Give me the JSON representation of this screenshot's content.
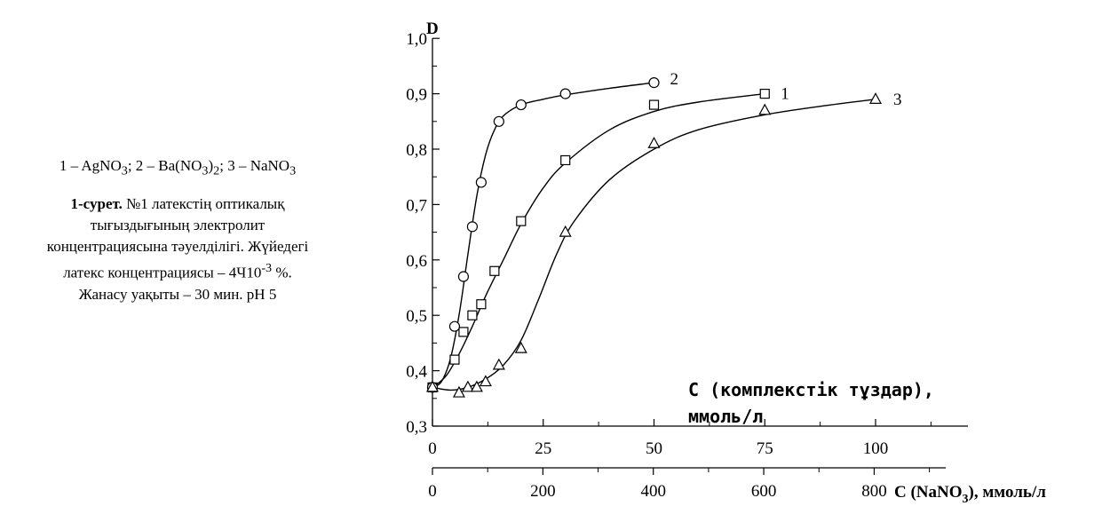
{
  "caption": {
    "legend_parts": [
      {
        "text": "1 – AgNO"
      },
      {
        "text": "3",
        "sub": true
      },
      {
        "text": "; 2 – Ba(NO"
      },
      {
        "text": "3",
        "sub": true
      },
      {
        "text": ")"
      },
      {
        "text": "2",
        "sub": true
      },
      {
        "text": "; 3 – NaNO"
      },
      {
        "text": "3",
        "sub": true
      }
    ],
    "figure_label": "1-сурет.",
    "figure_text_1": " №1 латекстің оптикалық тығыздығының электролит концентрациясына тәуелділігі. Жүйедегі латекс концентрациясы – 4Ч10",
    "figure_exp": "-3",
    "figure_text_2": " %. Жанасу уақыты – 30 мин. pH 5"
  },
  "chart_data": {
    "type": "scatter",
    "ylabel": "D",
    "ylim": [
      0.3,
      1.0
    ],
    "yticks": [
      0.3,
      0.4,
      0.5,
      0.6,
      0.7,
      0.8,
      0.9,
      1.0
    ],
    "ytick_labels": [
      "0,3",
      "0,4",
      "0,5",
      "0,6",
      "0,7",
      "0,8",
      "0,9",
      "1,0"
    ],
    "xaxis_top": {
      "label_line1": "C  (комплекстік тұздар),",
      "label_line2": "ммоль/л",
      "xlim": [
        0,
        120
      ],
      "ticks": [
        0,
        25,
        50,
        75,
        100
      ],
      "tick_labels": [
        "0",
        "25",
        "50",
        "75",
        "100"
      ]
    },
    "xaxis_bottom": {
      "label_main": "C (NaNO",
      "label_sub": "3",
      "label_end": "), ммоль/л",
      "xlim": [
        0,
        960
      ],
      "ticks": [
        0,
        200,
        400,
        600,
        800
      ],
      "tick_labels": [
        "0",
        "200",
        "400",
        "600",
        "800"
      ]
    },
    "series": [
      {
        "name": "1",
        "marker": "square",
        "axis": "top",
        "x": [
          0,
          5,
          7,
          9,
          11,
          14,
          20,
          30,
          50,
          75
        ],
        "y": [
          0.37,
          0.42,
          0.47,
          0.5,
          0.52,
          0.58,
          0.67,
          0.78,
          0.88,
          0.9
        ],
        "curve_x": [
          0,
          3,
          6,
          9,
          12,
          16,
          20,
          25,
          30,
          40,
          50,
          60,
          75
        ],
        "curve_y": [
          0.37,
          0.39,
          0.43,
          0.48,
          0.535,
          0.6,
          0.665,
          0.73,
          0.775,
          0.835,
          0.868,
          0.885,
          0.9
        ]
      },
      {
        "name": "2",
        "marker": "circle",
        "axis": "top",
        "x": [
          0,
          5,
          7,
          9,
          11,
          15,
          20,
          30,
          50
        ],
        "y": [
          0.37,
          0.48,
          0.57,
          0.66,
          0.74,
          0.85,
          0.88,
          0.9,
          0.92
        ],
        "curve_x": [
          0,
          2,
          4,
          6,
          8,
          10,
          12,
          14,
          16,
          20,
          25,
          30,
          40,
          50
        ],
        "curve_y": [
          0.37,
          0.38,
          0.42,
          0.5,
          0.61,
          0.715,
          0.79,
          0.835,
          0.86,
          0.88,
          0.89,
          0.898,
          0.91,
          0.92
        ]
      },
      {
        "name": "3",
        "marker": "triangle",
        "axis": "top",
        "x": [
          0,
          6,
          8,
          10,
          12,
          15,
          20,
          30,
          50,
          75,
          100
        ],
        "y": [
          0.37,
          0.36,
          0.37,
          0.37,
          0.38,
          0.41,
          0.44,
          0.65,
          0.81,
          0.87,
          0.89
        ],
        "curve_x": [
          0,
          4,
          8,
          12,
          16,
          20,
          24,
          28,
          32,
          40,
          50,
          60,
          75,
          90,
          100
        ],
        "curve_y": [
          0.37,
          0.365,
          0.37,
          0.385,
          0.41,
          0.455,
          0.53,
          0.61,
          0.67,
          0.745,
          0.8,
          0.835,
          0.862,
          0.88,
          0.89
        ]
      }
    ]
  }
}
